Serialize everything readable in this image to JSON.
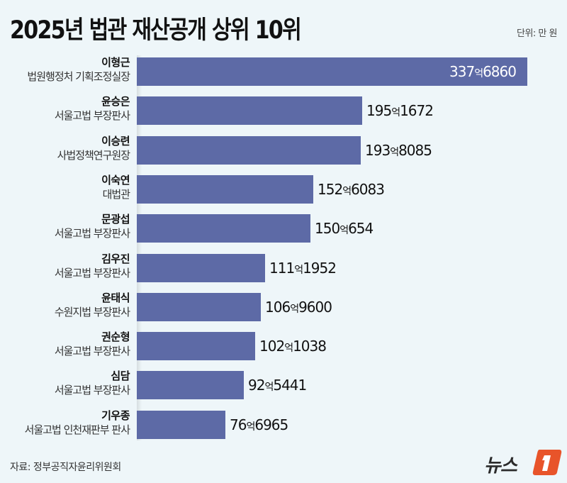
{
  "header": {
    "title": "2025년 법관 재산공개 상위 10위",
    "unit": "단위: 만 원"
  },
  "footer": {
    "source": "자료: 정부공직자윤리위원회",
    "logo_text": "뉴스",
    "logo_mark": "1"
  },
  "colors": {
    "background": "#eef6f9",
    "bar": "#5d6aa6",
    "logo_accent": "#e8542a"
  },
  "rows": [
    {
      "name": "이형근",
      "role": "법원행정처 기획조정실장",
      "eok": "337",
      "man": "6860",
      "label_inside": true
    },
    {
      "name": "윤승은",
      "role": "서울고법 부장판사",
      "eok": "195",
      "man": "1672"
    },
    {
      "name": "이승련",
      "role": "사법정책연구원장",
      "eok": "193",
      "man": "8085"
    },
    {
      "name": "이숙연",
      "role": "대법관",
      "eok": "152",
      "man": "6083"
    },
    {
      "name": "문광섭",
      "role": "서울고법 부장판사",
      "eok": "150",
      "man": "654"
    },
    {
      "name": "김우진",
      "role": "서울고법 부장판사",
      "eok": "111",
      "man": "1952"
    },
    {
      "name": "윤태식",
      "role": "수원지법 부장판사",
      "eok": "106",
      "man": "9600"
    },
    {
      "name": "권순형",
      "role": "서울고법 부장판사",
      "eok": "102",
      "man": "1038"
    },
    {
      "name": "심담",
      "role": "서울고법 부장판사",
      "eok": "92",
      "man": "5441"
    },
    {
      "name": "기우종",
      "role": "서울고법 인천재판부 판사",
      "eok": "76",
      "man": "6965"
    }
  ],
  "chart_data": {
    "type": "bar",
    "orientation": "horizontal",
    "title": "2025년 법관 재산공개 상위 10위",
    "unit": "만 원",
    "categories": [
      "이형근",
      "윤승은",
      "이승련",
      "이숙연",
      "문광섭",
      "김우진",
      "윤태식",
      "권순형",
      "심담",
      "기우종"
    ],
    "subtitles": [
      "법원행정처 기획조정실장",
      "서울고법 부장판사",
      "사법정책연구원장",
      "대법관",
      "서울고법 부장판사",
      "서울고법 부장판사",
      "수원지법 부장판사",
      "서울고법 부장판사",
      "서울고법 부장판사",
      "서울고법 인천재판부 판사"
    ],
    "values": [
      3376860,
      1951672,
      1938085,
      1526083,
      1500654,
      1111952,
      1069600,
      1021038,
      925441,
      766965
    ],
    "value_labels": [
      "337억6860",
      "195억1672",
      "193억8085",
      "152억6083",
      "150억654",
      "111억1952",
      "106억9600",
      "102억1038",
      "92억5441",
      "76억6965"
    ],
    "xlabel": "",
    "ylabel": "",
    "grid": false,
    "legend": null,
    "source": "자료: 정부공직자윤리위원회"
  }
}
